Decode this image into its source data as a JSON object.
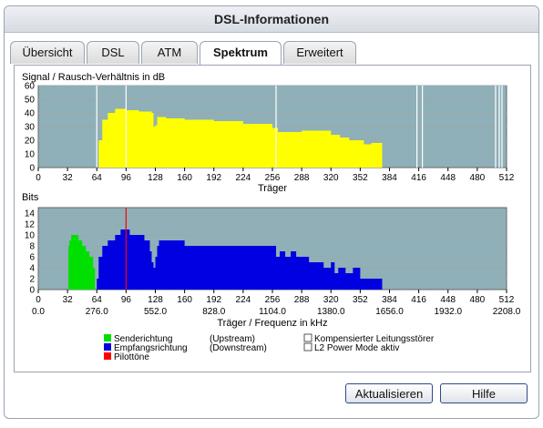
{
  "window": {
    "title": "DSL-Informationen"
  },
  "tabs": [
    {
      "label": "Übersicht",
      "active": false
    },
    {
      "label": "DSL",
      "active": false
    },
    {
      "label": "ATM",
      "active": false
    },
    {
      "label": "Spektrum",
      "active": true
    },
    {
      "label": "Erweitert",
      "active": false
    }
  ],
  "buttons": {
    "refresh": "Aktualisieren",
    "help": "Hilfe"
  },
  "legend": {
    "upstream_label": "Senderichtung",
    "upstream_note": "(Upstream)",
    "downstream_label": "Empfangsrichtung",
    "downstream_note": "(Downstream)",
    "pilot_label": "Pilottöne",
    "crosstalk_label": "Kompensierter Leitungsstörer",
    "l2_label": "L2 Power Mode aktiv"
  },
  "colors": {
    "plot_bg": "#8fb0b8",
    "snr_fill": "#ffff00",
    "upstream": "#00e000",
    "downstream": "#0000e0",
    "pilot": "#ff0000",
    "marker": "#ffffff"
  },
  "chart_data": [
    {
      "type": "area",
      "title": "Signal / Rausch-Verhältnis in dB",
      "xlabel": "Träger",
      "ylabel": "",
      "xlim": [
        0,
        512
      ],
      "ylim": [
        0,
        60
      ],
      "x_ticks": [
        0,
        32,
        64,
        96,
        128,
        160,
        192,
        224,
        256,
        288,
        320,
        352,
        384,
        416,
        448,
        480,
        512
      ],
      "y_ticks": [
        0,
        10,
        20,
        30,
        40,
        50,
        60
      ],
      "grid": true,
      "series": [
        {
          "x": [
            64,
            66,
            70,
            76,
            84,
            96,
            110,
            124,
            126,
            128,
            130,
            140,
            160,
            192,
            224,
            256,
            262,
            288,
            320,
            330,
            340,
            352,
            356,
            364,
            376
          ],
          "y": [
            0,
            20,
            35,
            40,
            43,
            42,
            41,
            40,
            30,
            31,
            37,
            36,
            35,
            34,
            32,
            29,
            26,
            27,
            24,
            22,
            20,
            20,
            17,
            18,
            17
          ]
        }
      ],
      "markers_x": [
        64,
        96,
        260,
        414,
        420,
        500,
        504,
        507
      ]
    },
    {
      "type": "bar",
      "title": "Bits",
      "xlabel": "Träger / Frequenz in kHz",
      "ylabel": "",
      "xlim": [
        0,
        512
      ],
      "ylim": [
        0,
        15
      ],
      "x_ticks": [
        0,
        32,
        64,
        96,
        128,
        160,
        192,
        224,
        256,
        288,
        320,
        352,
        384,
        416,
        448,
        480,
        512
      ],
      "freq_ticks": [
        "0.0",
        "276.0",
        "552.0",
        "828.0",
        "1104.0",
        "1380.0",
        "1656.0",
        "1932.0",
        "2208.0"
      ],
      "y_ticks": [
        0,
        2,
        4,
        6,
        8,
        10,
        12,
        14
      ],
      "grid": true,
      "upstream": {
        "x": [
          33,
          34,
          36,
          40,
          44,
          48,
          52,
          56,
          60,
          62
        ],
        "y": [
          8,
          9,
          10,
          10,
          9,
          8,
          7,
          6,
          4,
          2
        ]
      },
      "downstream": {
        "x": [
          64,
          66,
          70,
          76,
          84,
          90,
          96,
          100,
          104,
          110,
          116,
          122,
          124,
          126,
          128,
          130,
          132,
          140,
          160,
          192,
          224,
          256,
          260,
          264,
          270,
          276,
          282,
          288,
          296,
          304,
          312,
          320,
          324,
          328,
          336,
          344,
          352,
          360,
          368,
          376
        ],
        "y": [
          2,
          6,
          8,
          9,
          10,
          11,
          11,
          10,
          10,
          10,
          9,
          7,
          5,
          4,
          6,
          8,
          9,
          9,
          8,
          8,
          8,
          8,
          6,
          7,
          6,
          7,
          6,
          6,
          5,
          5,
          4,
          5,
          3,
          4,
          3,
          4,
          2,
          2,
          2,
          2
        ]
      },
      "pilot_x": [
        96
      ]
    }
  ]
}
